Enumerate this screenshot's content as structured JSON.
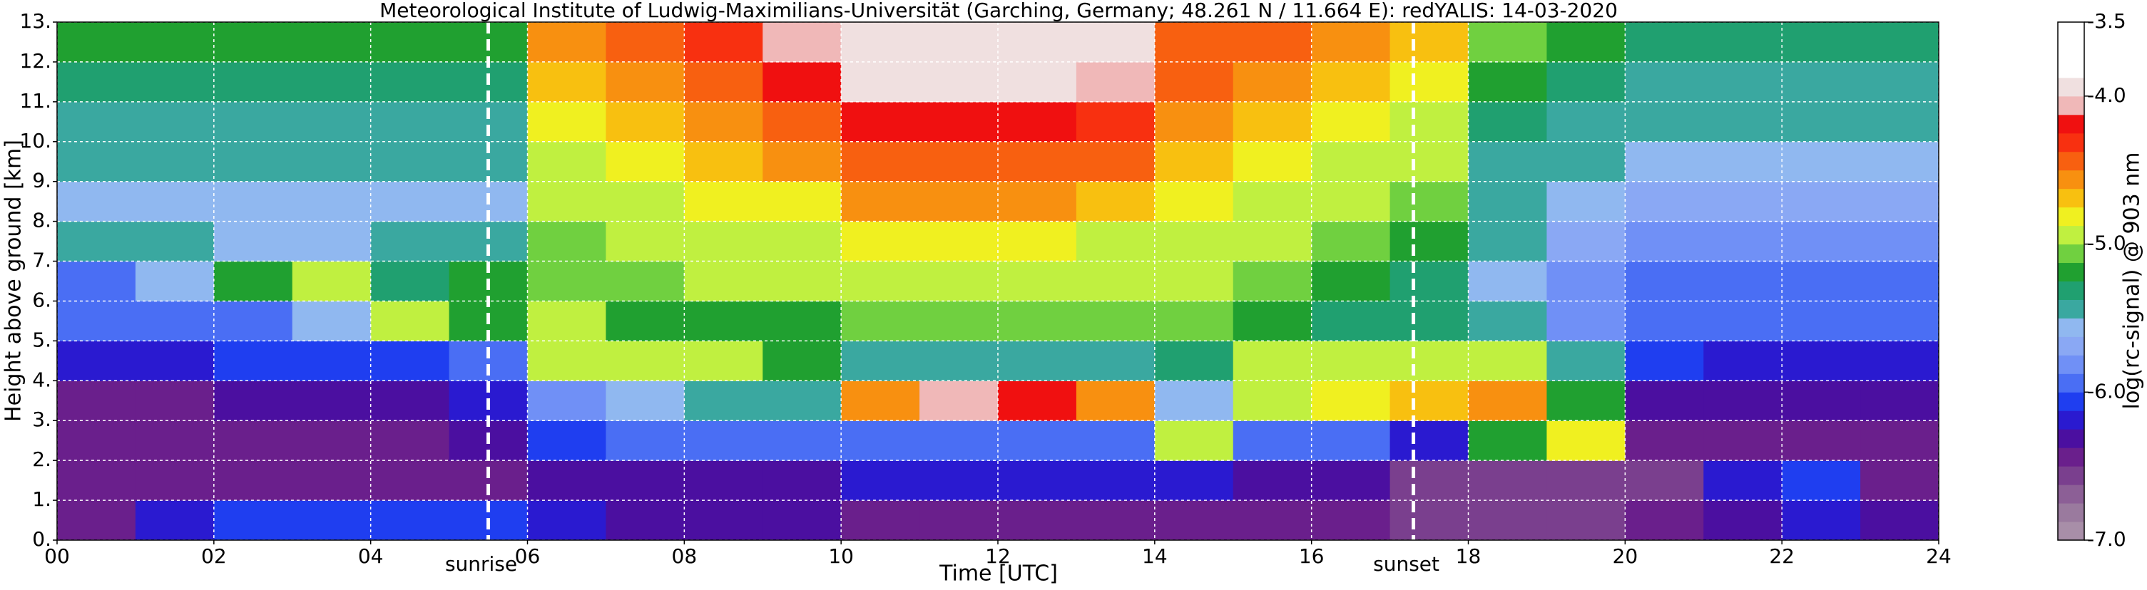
{
  "chart_data": {
    "type": "heatmap",
    "title": "Meteorological Institute of Ludwig-Maximilians-Universität (Garching, Germany; 48.261 N / 11.664 E):    redYALIS: 14-03-2020",
    "x_label": "Time [UTC]",
    "y_label": "Height above ground [km]",
    "x": [
      0,
      1,
      2,
      3,
      4,
      5,
      6,
      7,
      8,
      9,
      10,
      11,
      12,
      13,
      14,
      15,
      16,
      17,
      18,
      19,
      20,
      21,
      22,
      23,
      24
    ],
    "y": [
      0,
      1,
      2,
      3,
      4,
      5,
      6,
      7,
      8,
      9,
      10,
      11,
      12,
      13
    ],
    "values": [
      [
        -6.4,
        -6.2,
        -6.1,
        -6.1,
        -6.1,
        -6.1,
        -6.2,
        -6.3,
        -6.3,
        -6.3,
        -6.4,
        -6.4,
        -6.4,
        -6.5,
        -6.5,
        -6.5,
        -6.5,
        -6.6,
        -6.6,
        -6.6,
        -6.5,
        -6.3,
        -6.2,
        -6.3
      ],
      [
        -6.5,
        -6.5,
        -6.5,
        -6.5,
        -6.5,
        -6.5,
        -6.3,
        -6.3,
        -6.3,
        -6.3,
        -6.2,
        -6.2,
        -6.2,
        -6.2,
        -6.2,
        -6.3,
        -6.3,
        -6.6,
        -6.6,
        -6.6,
        -6.6,
        -6.2,
        -6.1,
        -6.4
      ],
      [
        -6.5,
        -6.4,
        -6.4,
        -6.4,
        -6.4,
        -6.3,
        -6.1,
        -6.0,
        -6.0,
        -6.0,
        -5.9,
        -5.9,
        -5.9,
        -5.9,
        -5.0,
        -5.9,
        -6.0,
        -6.2,
        -5.2,
        -4.8,
        -6.4,
        -6.5,
        -6.5,
        -6.5
      ],
      [
        -6.4,
        -6.4,
        -6.3,
        -6.3,
        -6.3,
        -6.2,
        -5.8,
        -5.6,
        -5.5,
        -5.4,
        -4.6,
        -4.1,
        -4.2,
        -4.6,
        -5.6,
        -4.9,
        -4.8,
        -4.7,
        -4.6,
        -5.2,
        -6.3,
        -6.3,
        -6.3,
        -6.3
      ],
      [
        -6.2,
        -6.2,
        -6.1,
        -6.1,
        -6.1,
        -5.9,
        -4.9,
        -5.0,
        -5.0,
        -5.2,
        -5.4,
        -5.4,
        -5.4,
        -5.4,
        -5.3,
        -4.9,
        -5.0,
        -4.9,
        -5.0,
        -5.5,
        -6.1,
        -6.2,
        -6.2,
        -6.2
      ],
      [
        -6.0,
        -6.0,
        -5.9,
        -5.6,
        -5.0,
        -5.2,
        -5.0,
        -5.2,
        -5.2,
        -5.2,
        -5.1,
        -5.1,
        -5.1,
        -5.1,
        -5.1,
        -5.2,
        -5.3,
        -5.3,
        -5.5,
        -5.8,
        -6.0,
        -6.0,
        -6.0,
        -6.0
      ],
      [
        -5.9,
        -5.6,
        -5.2,
        -4.9,
        -5.3,
        -5.2,
        -5.1,
        -5.1,
        -5.0,
        -5.0,
        -4.9,
        -4.9,
        -4.9,
        -5.0,
        -5.0,
        -5.1,
        -5.2,
        -5.3,
        -5.6,
        -5.8,
        -5.9,
        -5.9,
        -5.9,
        -5.9
      ],
      [
        -5.5,
        -5.5,
        -5.6,
        -5.6,
        -5.4,
        -5.5,
        -5.1,
        -5.0,
        -4.9,
        -4.9,
        -4.8,
        -4.8,
        -4.8,
        -4.9,
        -4.9,
        -5.0,
        -5.1,
        -5.2,
        -5.5,
        -5.7,
        -5.8,
        -5.8,
        -5.8,
        -5.8
      ],
      [
        -5.6,
        -5.6,
        -5.6,
        -5.6,
        -5.6,
        -5.6,
        -5.0,
        -4.9,
        -4.8,
        -4.8,
        -4.6,
        -4.6,
        -4.6,
        -4.7,
        -4.8,
        -4.9,
        -5.0,
        -5.1,
        -5.5,
        -5.6,
        -5.7,
        -5.7,
        -5.7,
        -5.7
      ],
      [
        -5.5,
        -5.5,
        -5.5,
        -5.5,
        -5.5,
        -5.5,
        -4.9,
        -4.8,
        -4.7,
        -4.6,
        -4.4,
        -4.4,
        -4.4,
        -4.5,
        -4.7,
        -4.8,
        -4.9,
        -5.0,
        -5.4,
        -5.5,
        -5.6,
        -5.6,
        -5.6,
        -5.6
      ],
      [
        -5.4,
        -5.4,
        -5.4,
        -5.4,
        -5.4,
        -5.4,
        -4.8,
        -4.7,
        -4.6,
        -4.4,
        -4.2,
        -4.2,
        -4.2,
        -4.3,
        -4.6,
        -4.7,
        -4.8,
        -4.9,
        -5.3,
        -5.4,
        -5.5,
        -5.5,
        -5.5,
        -5.5
      ],
      [
        -5.3,
        -5.3,
        -5.3,
        -5.3,
        -5.3,
        -5.3,
        -4.7,
        -4.6,
        -4.4,
        -4.2,
        -4.0,
        -4.0,
        -4.0,
        -4.1,
        -4.5,
        -4.6,
        -4.7,
        -4.8,
        -5.2,
        -5.3,
        -5.4,
        -5.4,
        -5.4,
        -5.4
      ],
      [
        -5.2,
        -5.2,
        -5.2,
        -5.2,
        -5.2,
        -5.2,
        -4.6,
        -4.5,
        -4.3,
        -4.1,
        -3.9,
        -3.9,
        -3.9,
        -4.0,
        -4.4,
        -4.5,
        -4.6,
        -4.7,
        -5.1,
        -5.2,
        -5.3,
        -5.3,
        -5.3,
        -5.3
      ]
    ],
    "xlim": [
      0,
      24
    ],
    "xticks": [
      {
        "value": 0,
        "label": "00"
      },
      {
        "value": 2,
        "label": "02"
      },
      {
        "value": 4,
        "label": "04"
      },
      {
        "value": 6,
        "label": "06"
      },
      {
        "value": 8,
        "label": "08"
      },
      10,
      12,
      14,
      16,
      18,
      20,
      22,
      24
    ],
    "ylim": [
      0,
      13
    ],
    "yticks": [
      {
        "value": 0,
        "label": "0."
      },
      {
        "value": 1,
        "label": "1."
      },
      {
        "value": 2,
        "label": "2."
      },
      {
        "value": 3,
        "label": "3."
      },
      {
        "value": 4,
        "label": "4."
      },
      {
        "value": 5,
        "label": "5."
      },
      {
        "value": 6,
        "label": "6."
      },
      {
        "value": 7,
        "label": "7."
      },
      {
        "value": 8,
        "label": "8."
      },
      {
        "value": 9,
        "label": "9."
      },
      {
        "value": 10,
        "label": "10."
      },
      {
        "value": 11,
        "label": "11."
      },
      {
        "value": 12,
        "label": "12."
      },
      {
        "value": 13,
        "label": "13."
      }
    ],
    "grid": true,
    "grid_color": "#ffffff",
    "annotations": [
      {
        "text": "sunrise",
        "x": 5.5
      },
      {
        "text": "sunset",
        "x": 17.3
      }
    ],
    "colorbar": {
      "label": "log(rc-signal) @ 903 nm",
      "lim": [
        -7.0,
        -3.5
      ],
      "ticks": [
        {
          "value": -3.5,
          "label": "-3.5"
        },
        {
          "value": -4.0,
          "label": "-4.0"
        },
        {
          "value": -5.0,
          "label": "-5.0"
        },
        {
          "value": -6.0,
          "label": "-6.0"
        },
        {
          "value": -7.0,
          "label": "-7.0"
        }
      ],
      "colors": [
        "#a88ea8",
        "#9a7a9e",
        "#8c5f96",
        "#7a3f8e",
        "#6a1f8c",
        "#4b0fa0",
        "#2a1ad0",
        "#1f3ef0",
        "#4a6ef4",
        "#7090f6",
        "#8aa8f4",
        "#90b8f0",
        "#3aa8a0",
        "#20a070",
        "#20a030",
        "#70d040",
        "#c0f040",
        "#f0f020",
        "#f8c010",
        "#f89010",
        "#f86010",
        "#f83010",
        "#f01010",
        "#f0b8b8",
        "#f0e0e0",
        "#ffffff",
        "#ffffff",
        "#ffffff"
      ]
    }
  }
}
